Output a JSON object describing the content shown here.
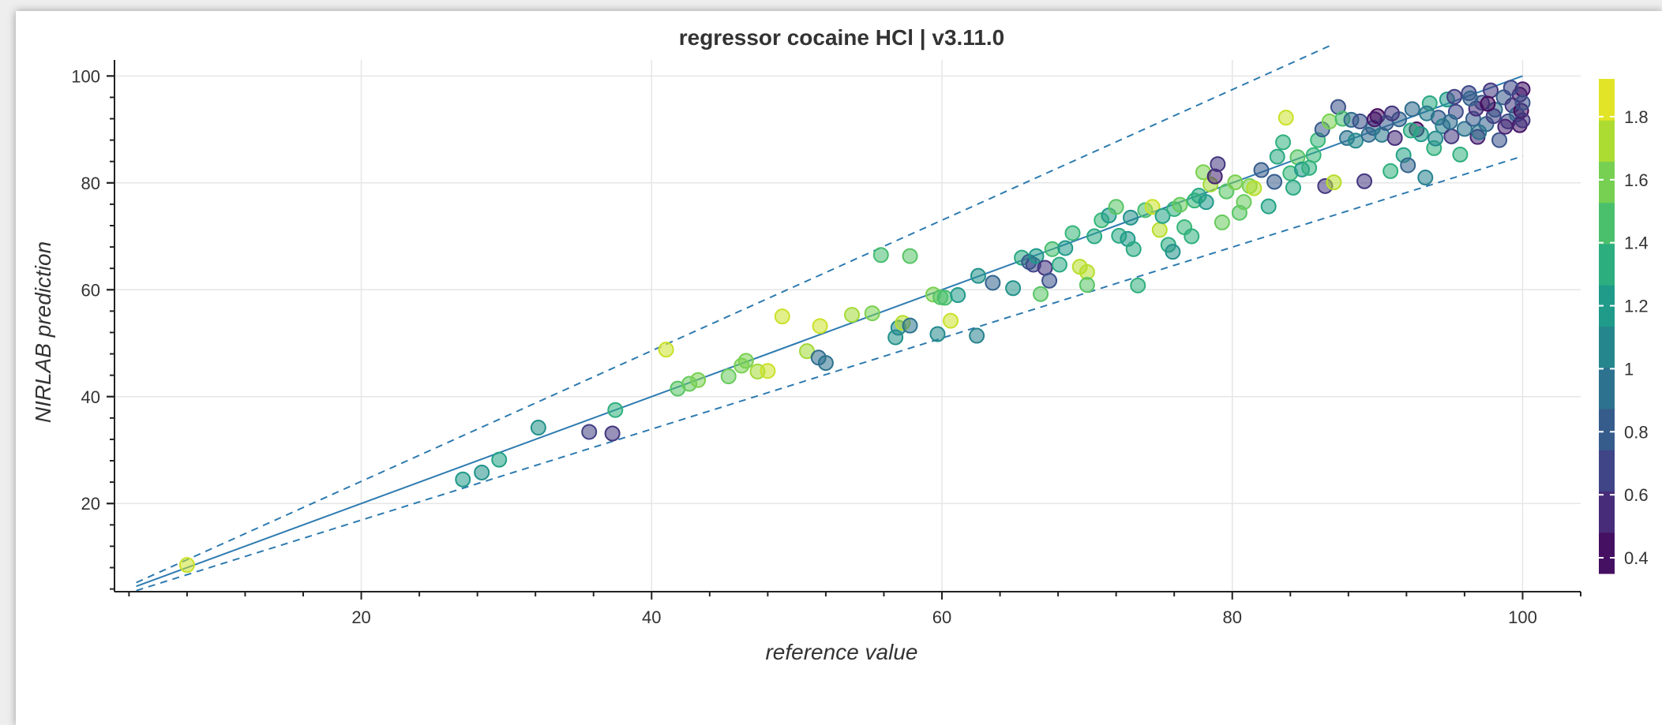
{
  "chart_data": {
    "type": "scatter",
    "title": "regressor cocaine HCl | v3.11.0",
    "xlabel": "reference value",
    "ylabel": "NIRLAB prediction",
    "xlim": [
      3,
      104
    ],
    "ylim": [
      3.5,
      103
    ],
    "x_ticks": [
      20,
      40,
      60,
      80,
      100
    ],
    "y_ticks": [
      20,
      40,
      60,
      80,
      100
    ],
    "grid": true,
    "colorbar": {
      "range": [
        0.35,
        1.92
      ],
      "ticks": [
        0.4,
        0.6,
        0.8,
        1,
        1.2,
        1.4,
        1.6,
        1.8
      ],
      "tick_labels": [
        "0.4",
        "0.6",
        "0.8",
        "1",
        "1.2",
        "1.4",
        "1.6",
        "1.8"
      ]
    },
    "lines": [
      {
        "name": "identity",
        "style": "solid",
        "points": [
          [
            4.5,
            4.5
          ],
          [
            100,
            100
          ]
        ]
      },
      {
        "name": "upper-bound",
        "style": "dashed",
        "points": [
          [
            4.5,
            5.2
          ],
          [
            87,
            106
          ]
        ]
      },
      {
        "name": "lower-bound",
        "style": "dashed",
        "points": [
          [
            4.5,
            3.7
          ],
          [
            100,
            85
          ]
        ]
      }
    ],
    "points": [
      [
        8,
        8.5,
        1.8
      ],
      [
        27,
        24.5,
        1.2
      ],
      [
        28.3,
        25.8,
        1.15
      ],
      [
        29.5,
        28.2,
        1.25
      ],
      [
        32.2,
        34.2,
        1.15
      ],
      [
        35.7,
        33.4,
        0.65
      ],
      [
        37.3,
        33.1,
        0.6
      ],
      [
        37.5,
        37.5,
        1.35
      ],
      [
        41,
        48.8,
        1.8
      ],
      [
        41.8,
        41.5,
        1.5
      ],
      [
        42.6,
        42.4,
        1.55
      ],
      [
        43.2,
        43.1,
        1.6
      ],
      [
        45.3,
        43.8,
        1.55
      ],
      [
        46.2,
        45.8,
        1.6
      ],
      [
        46.5,
        46.7,
        1.6
      ],
      [
        47.3,
        44.7,
        1.7
      ],
      [
        48,
        44.8,
        1.8
      ],
      [
        49,
        55,
        1.8
      ],
      [
        50.7,
        48.5,
        1.7
      ],
      [
        51.5,
        47.3,
        0.9
      ],
      [
        51.6,
        53.2,
        1.8
      ],
      [
        52,
        46.3,
        0.95
      ],
      [
        53.8,
        55.3,
        1.7
      ],
      [
        55.2,
        55.6,
        1.6
      ],
      [
        55.8,
        66.5,
        1.45
      ],
      [
        56.8,
        51.1,
        1.15
      ],
      [
        57,
        52.9,
        1.1
      ],
      [
        57.3,
        53.8,
        1.75
      ],
      [
        57.8,
        53.3,
        0.95
      ],
      [
        57.8,
        66.3,
        1.5
      ],
      [
        59.4,
        59.1,
        1.6
      ],
      [
        59.9,
        58.6,
        1.5
      ],
      [
        60.2,
        58.5,
        1.45
      ],
      [
        60.6,
        54.2,
        1.8
      ],
      [
        61.1,
        59,
        1.2
      ],
      [
        59.7,
        51.7,
        1.1
      ],
      [
        62.4,
        51.4,
        1.05
      ],
      [
        62.5,
        62.6,
        1.15
      ],
      [
        63.5,
        61.3,
        0.85
      ],
      [
        64.9,
        60.3,
        1.15
      ],
      [
        65.5,
        66,
        1.3
      ],
      [
        66,
        65.2,
        0.8
      ],
      [
        66.3,
        64.7,
        0.7
      ],
      [
        66.5,
        66.3,
        1.2
      ],
      [
        66.8,
        59.2,
        1.5
      ],
      [
        67.1,
        64.1,
        0.6
      ],
      [
        67.4,
        61.7,
        0.75
      ],
      [
        67.6,
        67.6,
        1.45
      ],
      [
        68.1,
        64.7,
        1.3
      ],
      [
        68.5,
        67.8,
        1.2
      ],
      [
        69,
        70.6,
        1.4
      ],
      [
        69.5,
        64.3,
        1.75
      ],
      [
        70,
        63.3,
        1.75
      ],
      [
        70,
        60.9,
        1.5
      ],
      [
        70.5,
        70,
        1.3
      ],
      [
        71,
        73,
        1.4
      ],
      [
        71.5,
        73.9,
        1.2
      ],
      [
        72,
        75.5,
        1.5
      ],
      [
        72.2,
        70.1,
        1.3
      ],
      [
        72.8,
        69.5,
        1.2
      ],
      [
        73.2,
        67.6,
        1.3
      ],
      [
        73,
        73.5,
        1.15
      ],
      [
        73.5,
        60.8,
        1.35
      ],
      [
        74,
        74.9,
        1.45
      ],
      [
        74.5,
        75.5,
        1.8
      ],
      [
        75,
        71.2,
        1.75
      ],
      [
        75.2,
        73.8,
        1.25
      ],
      [
        75.6,
        68.4,
        1.3
      ],
      [
        75.9,
        67.1,
        1.15
      ],
      [
        76,
        75.1,
        1.35
      ],
      [
        76.4,
        75.9,
        1.55
      ],
      [
        76.7,
        71.7,
        1.4
      ],
      [
        77.2,
        70,
        1.35
      ],
      [
        77.4,
        76.7,
        1.4
      ],
      [
        77.7,
        77.6,
        1.3
      ],
      [
        78,
        82,
        1.6
      ],
      [
        78.2,
        76.4,
        1.2
      ],
      [
        78.5,
        79.7,
        1.7
      ],
      [
        78.8,
        81.2,
        0.5
      ],
      [
        79,
        83.5,
        0.6
      ],
      [
        79.3,
        72.6,
        1.55
      ],
      [
        79.6,
        78.4,
        1.5
      ],
      [
        80.2,
        80.1,
        1.6
      ],
      [
        80.5,
        74.4,
        1.5
      ],
      [
        80.8,
        76.4,
        1.55
      ],
      [
        81.2,
        79.4,
        1.6
      ],
      [
        81.5,
        79,
        1.75
      ],
      [
        82,
        82.4,
        0.8
      ],
      [
        82.5,
        75.6,
        1.25
      ],
      [
        82.9,
        80.2,
        0.8
      ],
      [
        83.1,
        84.9,
        1.3
      ],
      [
        83.5,
        87.6,
        1.35
      ],
      [
        83.7,
        92.2,
        1.8
      ],
      [
        84,
        81.8,
        1.4
      ],
      [
        84.2,
        79.1,
        1.3
      ],
      [
        84.5,
        84.8,
        1.5
      ],
      [
        84.8,
        82.5,
        1.2
      ],
      [
        85.3,
        82.8,
        1.35
      ],
      [
        85.6,
        85.2,
        1.4
      ],
      [
        85.9,
        88,
        1.4
      ],
      [
        86.2,
        90,
        0.8
      ],
      [
        86.4,
        79.4,
        0.6
      ],
      [
        86.7,
        91.5,
        1.6
      ],
      [
        87,
        80.1,
        1.75
      ],
      [
        87.3,
        94.2,
        0.75
      ],
      [
        87.6,
        92,
        1.45
      ],
      [
        87.9,
        88.4,
        0.95
      ],
      [
        88.2,
        91.8,
        0.9
      ],
      [
        88.5,
        87.9,
        1.1
      ],
      [
        88.8,
        91.5,
        0.75
      ],
      [
        89.1,
        80.3,
        0.6
      ],
      [
        89.4,
        89,
        0.9
      ],
      [
        89.7,
        90.3,
        0.85
      ],
      [
        90,
        92.5,
        0.4
      ],
      [
        90.3,
        89,
        1
      ],
      [
        90.6,
        91.2,
        0.8
      ],
      [
        90.9,
        82.2,
        1.35
      ],
      [
        91.2,
        88.4,
        0.55
      ],
      [
        91.5,
        91.9,
        0.85
      ],
      [
        91.8,
        85.2,
        1.25
      ],
      [
        92.1,
        83.3,
        0.85
      ],
      [
        92.4,
        93.8,
        0.9
      ],
      [
        92.7,
        90,
        0.4
      ],
      [
        93,
        89.1,
        1.2
      ],
      [
        93.3,
        81,
        1.05
      ],
      [
        93.6,
        94.9,
        1.3
      ],
      [
        93.9,
        86.5,
        1.35
      ],
      [
        94.2,
        92.2,
        0.8
      ],
      [
        94.5,
        90.6,
        1.05
      ],
      [
        94.8,
        95.6,
        1.2
      ],
      [
        95.1,
        88.7,
        0.6
      ],
      [
        95.4,
        93.3,
        0.7
      ],
      [
        95.7,
        85.3,
        1.35
      ],
      [
        96,
        90.1,
        0.95
      ],
      [
        96.3,
        96.8,
        0.7
      ],
      [
        96.6,
        92,
        0.8
      ],
      [
        96.9,
        88.6,
        0.5
      ],
      [
        97.2,
        95,
        0.75
      ],
      [
        97.5,
        91,
        0.85
      ],
      [
        97.8,
        97.3,
        0.6
      ],
      [
        98.1,
        93.7,
        0.9
      ],
      [
        98.4,
        88,
        0.75
      ],
      [
        98.7,
        96,
        0.8
      ],
      [
        99,
        91.5,
        0.7
      ],
      [
        99.3,
        94.5,
        0.6
      ],
      [
        99.6,
        92.8,
        0.85
      ],
      [
        99.8,
        96.5,
        0.5
      ],
      [
        99.8,
        90.8,
        0.45
      ],
      [
        99.9,
        93.5,
        0.4
      ],
      [
        100,
        97.5,
        0.45
      ],
      [
        100,
        91.7,
        0.6
      ],
      [
        95,
        91.4,
        0.9
      ],
      [
        96.8,
        93.9,
        0.55
      ],
      [
        98,
        92.5,
        0.65
      ],
      [
        99.2,
        97.8,
        0.7
      ],
      [
        97,
        89.5,
        0.95
      ],
      [
        94,
        88.3,
        1.1
      ],
      [
        92.3,
        89.8,
        1.3
      ],
      [
        91,
        93,
        0.6
      ],
      [
        89.8,
        91.9,
        0.45
      ],
      [
        98.8,
        90.5,
        0.5
      ],
      [
        97.6,
        94.8,
        0.4
      ],
      [
        96.4,
        95.8,
        0.85
      ],
      [
        95.3,
        96.1,
        0.65
      ],
      [
        93.4,
        93,
        1.0
      ],
      [
        100,
        95,
        0.75
      ]
    ]
  }
}
